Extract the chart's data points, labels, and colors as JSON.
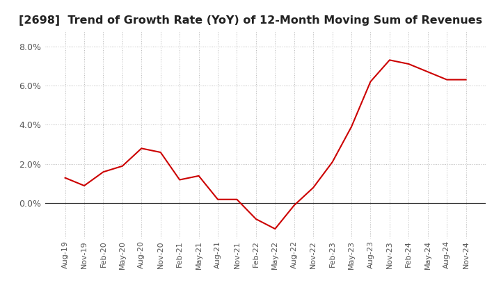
{
  "title": "[2698]  Trend of Growth Rate (YoY) of 12-Month Moving Sum of Revenues",
  "title_fontsize": 11.5,
  "line_color": "#cc0000",
  "background_color": "#ffffff",
  "grid_color": "#bbbbbb",
  "zero_line_color": "#333333",
  "ylim": [
    -0.018,
    0.088
  ],
  "yticks": [
    0.0,
    0.02,
    0.04,
    0.06,
    0.08
  ],
  "x_labels": [
    "Aug-19",
    "Nov-19",
    "Feb-20",
    "May-20",
    "Aug-20",
    "Nov-20",
    "Feb-21",
    "May-21",
    "Aug-21",
    "Nov-21",
    "Feb-22",
    "May-22",
    "Aug-22",
    "Nov-22",
    "Feb-23",
    "May-23",
    "Aug-23",
    "Nov-23",
    "Feb-24",
    "May-24",
    "Aug-24",
    "Nov-24"
  ],
  "values": [
    0.013,
    0.009,
    0.016,
    0.019,
    0.028,
    0.026,
    0.012,
    0.014,
    0.002,
    0.002,
    -0.008,
    -0.013,
    -0.001,
    0.008,
    0.021,
    0.039,
    0.062,
    0.073,
    0.071,
    0.067,
    0.063,
    0.063
  ]
}
